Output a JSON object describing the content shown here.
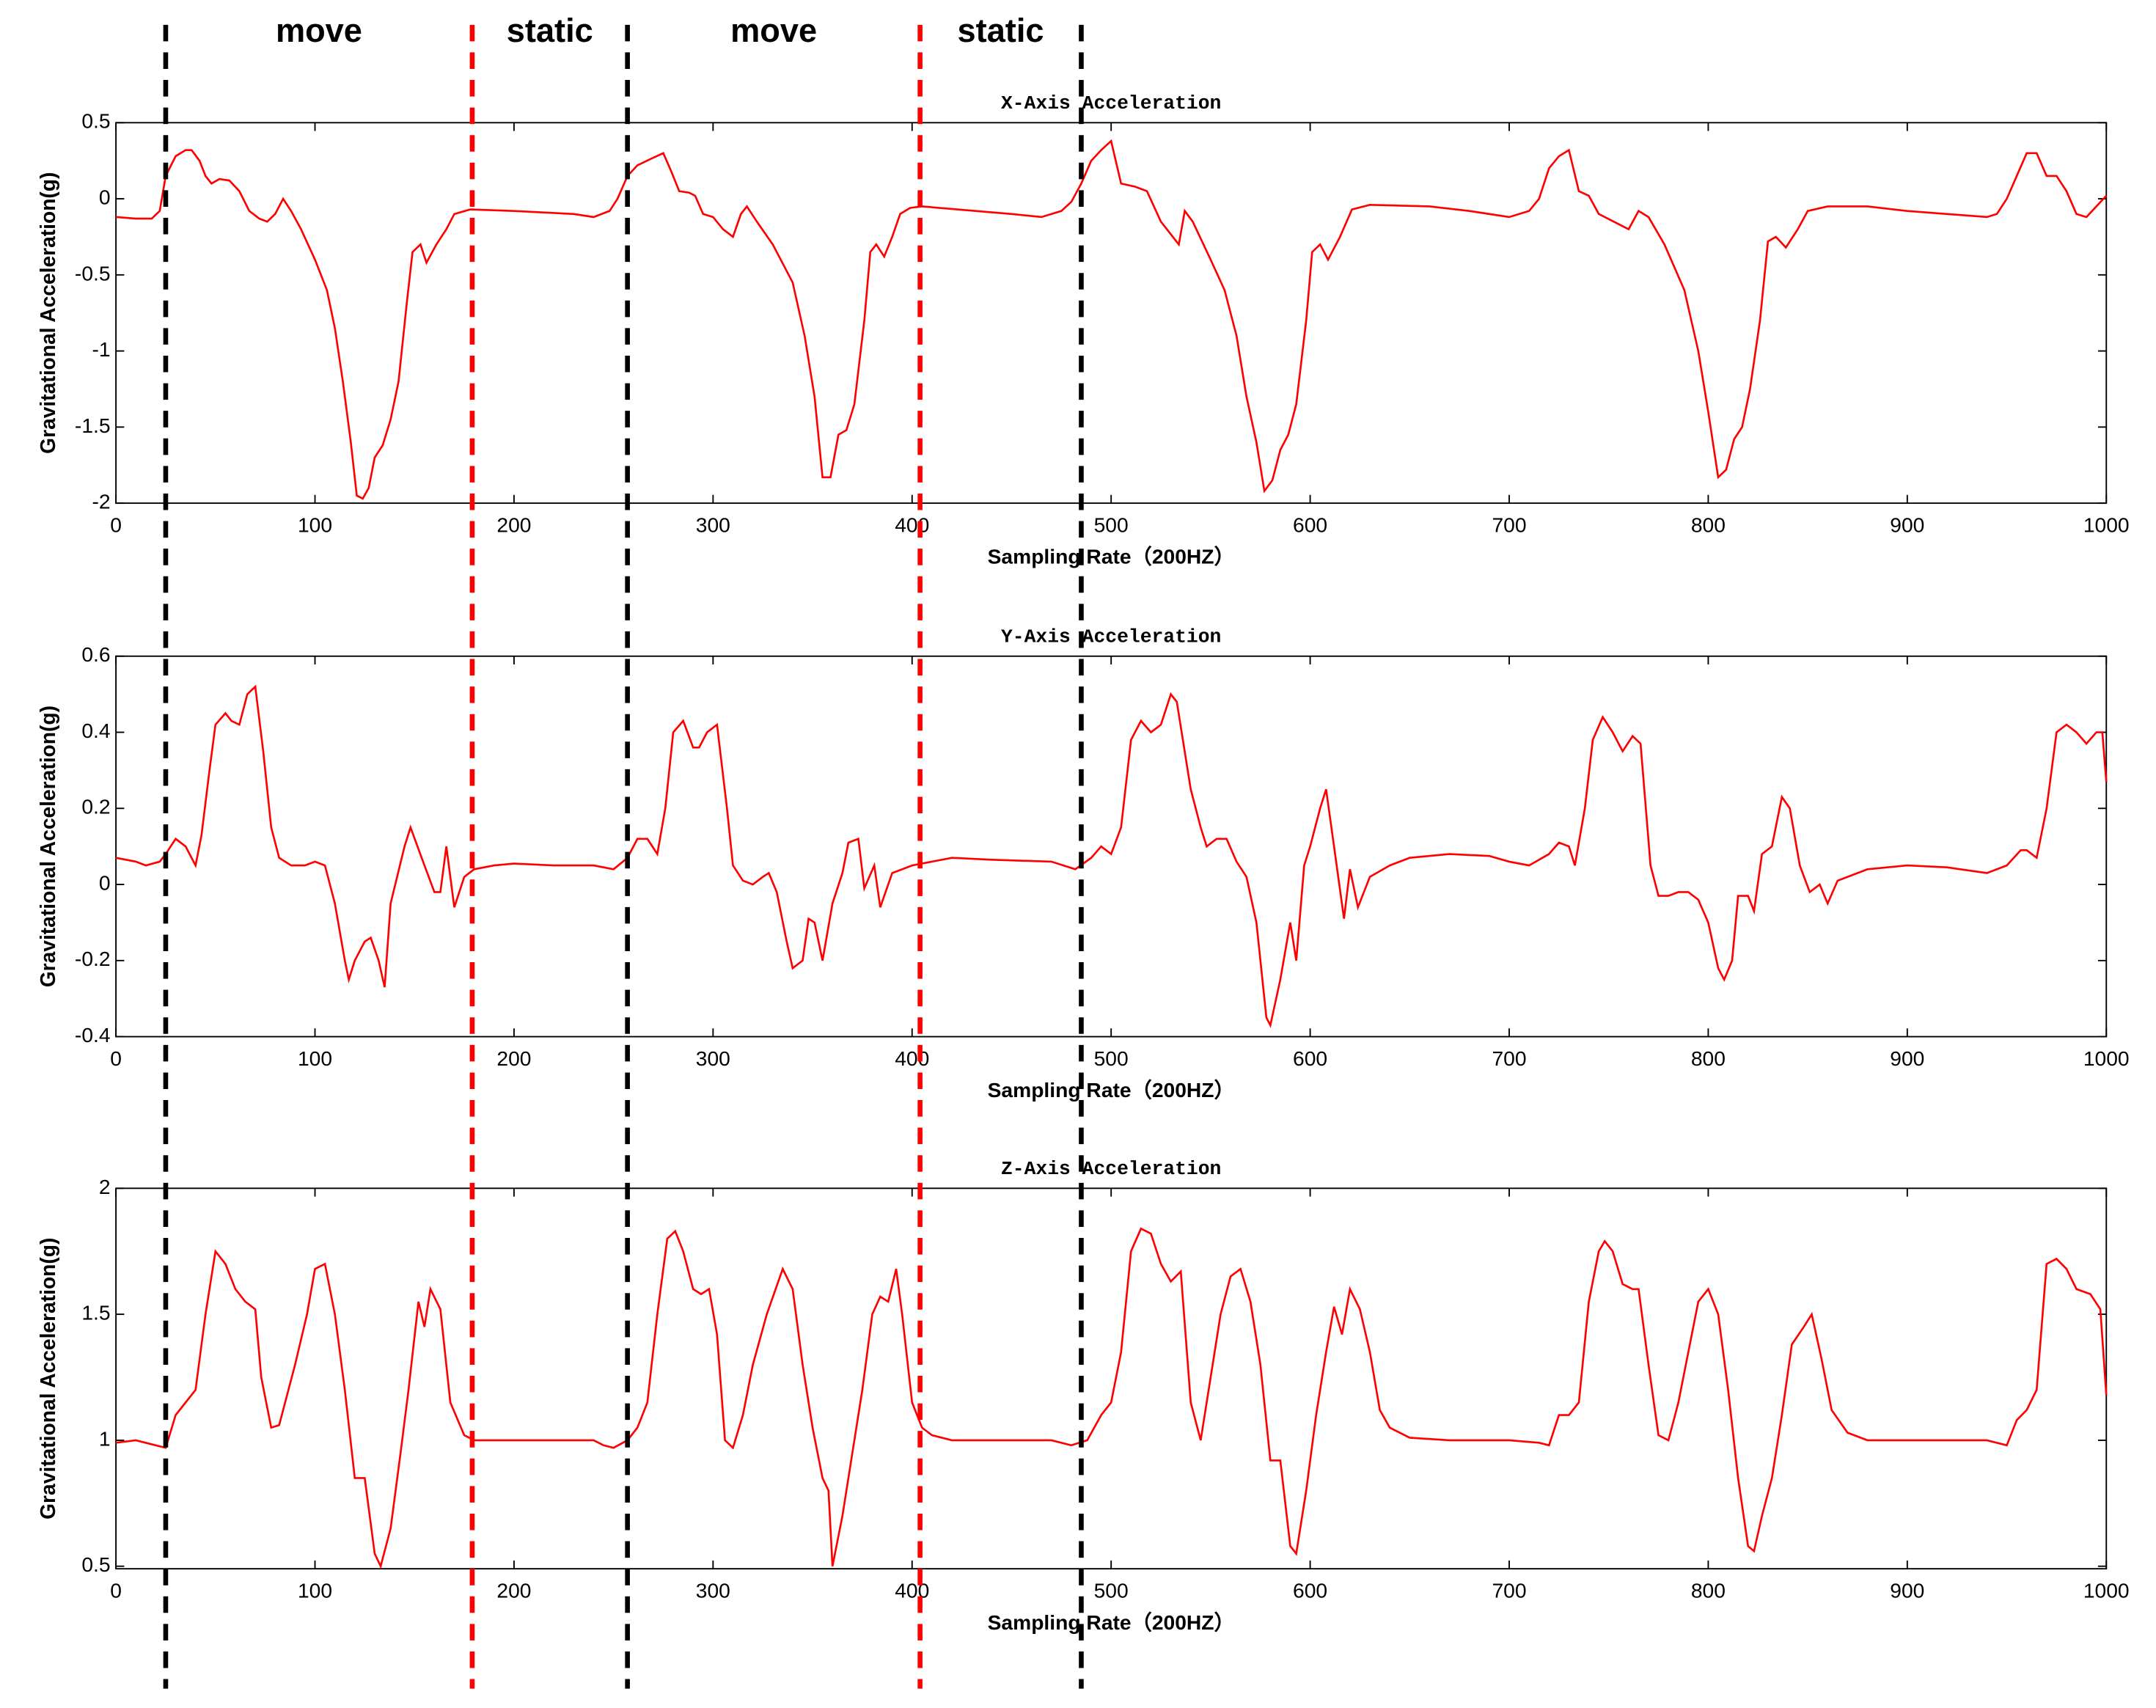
{
  "chart_data": [
    {
      "type": "line",
      "title": "X-Axis Acceleration",
      "xlabel": "Sampling Rate（200HZ）",
      "ylabel": "Gravitational Acceleration(g)",
      "xlim": [
        0,
        1000
      ],
      "xticks": [
        0,
        100,
        200,
        300,
        400,
        500,
        600,
        700,
        800,
        900,
        1000
      ],
      "ylim": [
        -2,
        0.5
      ],
      "yticks": [
        -2,
        -1.5,
        -1,
        -0.5,
        0,
        0.5
      ],
      "grid": false,
      "x": [
        0,
        10,
        18,
        22,
        25,
        30,
        35,
        38,
        42,
        45,
        48,
        52,
        57,
        62,
        67,
        72,
        76,
        80,
        84,
        88,
        93,
        100,
        106,
        110,
        114,
        118,
        121,
        124,
        127,
        130,
        134,
        138,
        142,
        146,
        149,
        153,
        156,
        161,
        166,
        170,
        178,
        200,
        230,
        240,
        248,
        252,
        257,
        262,
        270,
        275,
        279,
        283,
        288,
        291,
        295,
        300,
        305,
        310,
        314,
        317,
        322,
        330,
        340,
        346,
        351,
        355,
        359,
        363,
        367,
        371,
        376,
        379,
        382,
        386,
        390,
        394,
        399,
        405,
        450,
        465,
        475,
        480,
        485,
        490,
        495,
        500,
        505,
        512,
        518,
        525,
        534,
        537,
        541,
        550,
        557,
        563,
        568,
        573,
        577,
        581,
        585,
        589,
        593,
        598,
        601,
        605,
        609,
        615,
        621,
        630,
        660,
        680,
        700,
        710,
        715,
        720,
        725,
        730,
        735,
        740,
        745,
        760,
        765,
        770,
        778,
        788,
        795,
        800,
        805,
        809,
        813,
        817,
        821,
        826,
        830,
        834,
        839,
        845,
        850,
        860,
        880,
        900,
        940,
        945,
        950,
        955,
        960,
        965,
        970,
        975,
        980,
        985,
        990,
        995,
        1000
      ],
      "series": [
        {
          "name": "X",
          "color": "#ff0000",
          "values": [
            -0.12,
            -0.13,
            -0.13,
            -0.08,
            0.15,
            0.28,
            0.32,
            0.32,
            0.25,
            0.15,
            0.1,
            0.13,
            0.12,
            0.05,
            -0.08,
            -0.13,
            -0.15,
            -0.1,
            0.0,
            -0.08,
            -0.2,
            -0.4,
            -0.6,
            -0.85,
            -1.2,
            -1.6,
            -1.95,
            -1.97,
            -1.9,
            -1.7,
            -1.62,
            -1.45,
            -1.2,
            -0.7,
            -0.35,
            -0.3,
            -0.42,
            -0.3,
            -0.2,
            -0.1,
            -0.07,
            -0.08,
            -0.1,
            -0.12,
            -0.08,
            0.0,
            0.15,
            0.22,
            0.27,
            0.3,
            0.18,
            0.05,
            0.04,
            0.02,
            -0.1,
            -0.12,
            -0.2,
            -0.25,
            -0.1,
            -0.05,
            -0.15,
            -0.3,
            -0.55,
            -0.9,
            -1.3,
            -1.83,
            -1.83,
            -1.55,
            -1.52,
            -1.35,
            -0.8,
            -0.35,
            -0.3,
            -0.38,
            -0.25,
            -0.1,
            -0.06,
            -0.05,
            -0.1,
            -0.12,
            -0.08,
            -0.02,
            0.1,
            0.25,
            0.32,
            0.38,
            0.1,
            0.08,
            0.05,
            -0.15,
            -0.3,
            -0.08,
            -0.15,
            -0.4,
            -0.6,
            -0.9,
            -1.3,
            -1.6,
            -1.92,
            -1.85,
            -1.65,
            -1.55,
            -1.35,
            -0.8,
            -0.35,
            -0.3,
            -0.4,
            -0.25,
            -0.07,
            -0.04,
            -0.05,
            -0.08,
            -0.12,
            -0.08,
            0.0,
            0.2,
            0.28,
            0.32,
            0.05,
            0.02,
            -0.1,
            -0.2,
            -0.08,
            -0.12,
            -0.3,
            -0.6,
            -1.0,
            -1.4,
            -1.83,
            -1.78,
            -1.58,
            -1.5,
            -1.25,
            -0.8,
            -0.28,
            -0.25,
            -0.32,
            -0.2,
            -0.08,
            -0.05,
            -0.05,
            -0.08,
            -0.12,
            -0.1,
            0.0,
            0.15,
            0.3,
            0.3,
            0.15,
            0.15,
            0.05,
            -0.1,
            -0.12,
            -0.05,
            0.02
          ]
        }
      ]
    },
    {
      "type": "line",
      "title": "Y-Axis Acceleration",
      "xlabel": "Sampling Rate（200HZ）",
      "ylabel": "Gravitational Acceleration(g)",
      "xlim": [
        0,
        1000
      ],
      "xticks": [
        0,
        100,
        200,
        300,
        400,
        500,
        600,
        700,
        800,
        900,
        1000
      ],
      "ylim": [
        -0.4,
        0.6
      ],
      "yticks": [
        -0.4,
        -0.2,
        0,
        0.2,
        0.4,
        0.6
      ],
      "grid": false,
      "x": [
        0,
        10,
        15,
        22,
        25,
        30,
        35,
        40,
        43,
        47,
        50,
        55,
        58,
        62,
        66,
        70,
        74,
        78,
        82,
        88,
        95,
        100,
        105,
        110,
        115,
        117,
        120,
        125,
        128,
        132,
        135,
        138,
        145,
        148,
        155,
        160,
        163,
        166,
        170,
        175,
        180,
        190,
        200,
        220,
        240,
        250,
        257,
        262,
        267,
        272,
        276,
        280,
        285,
        290,
        293,
        297,
        302,
        307,
        310,
        315,
        320,
        325,
        328,
        332,
        337,
        340,
        345,
        348,
        351,
        355,
        360,
        365,
        368,
        373,
        376,
        381,
        384,
        390,
        400,
        420,
        440,
        470,
        482,
        490,
        495,
        500,
        505,
        510,
        515,
        520,
        525,
        530,
        533,
        540,
        545,
        548,
        553,
        558,
        563,
        568,
        573,
        578,
        580,
        585,
        590,
        593,
        597,
        600,
        605,
        608,
        612,
        617,
        620,
        624,
        630,
        640,
        650,
        670,
        690,
        700,
        710,
        720,
        725,
        730,
        733,
        738,
        742,
        747,
        752,
        757,
        762,
        766,
        771,
        775,
        780,
        785,
        790,
        795,
        800,
        805,
        808,
        812,
        815,
        820,
        823,
        827,
        832,
        837,
        841,
        846,
        851,
        856,
        860,
        865,
        880,
        900,
        920,
        940,
        950,
        957,
        960,
        965,
        970,
        975,
        980,
        985,
        990,
        995,
        998,
        1000
      ],
      "series": [
        {
          "name": "Y",
          "color": "#ff0000",
          "values": [
            0.07,
            0.06,
            0.05,
            0.06,
            0.08,
            0.12,
            0.1,
            0.05,
            0.13,
            0.3,
            0.42,
            0.45,
            0.43,
            0.42,
            0.5,
            0.52,
            0.35,
            0.15,
            0.07,
            0.05,
            0.05,
            0.06,
            0.05,
            -0.05,
            -0.2,
            -0.25,
            -0.2,
            -0.15,
            -0.14,
            -0.2,
            -0.27,
            -0.05,
            0.1,
            0.15,
            0.05,
            -0.02,
            -0.02,
            0.1,
            -0.06,
            0.02,
            0.04,
            0.05,
            0.055,
            0.05,
            0.05,
            0.04,
            0.07,
            0.12,
            0.12,
            0.08,
            0.2,
            0.4,
            0.43,
            0.36,
            0.36,
            0.4,
            0.42,
            0.2,
            0.05,
            0.01,
            0.0,
            0.02,
            0.03,
            -0.02,
            -0.15,
            -0.22,
            -0.2,
            -0.09,
            -0.1,
            -0.2,
            -0.05,
            0.03,
            0.11,
            0.12,
            -0.01,
            0.05,
            -0.06,
            0.03,
            0.05,
            0.07,
            0.065,
            0.06,
            0.04,
            0.07,
            0.1,
            0.08,
            0.15,
            0.38,
            0.43,
            0.4,
            0.42,
            0.5,
            0.48,
            0.25,
            0.15,
            0.1,
            0.12,
            0.12,
            0.06,
            0.02,
            -0.1,
            -0.35,
            -0.37,
            -0.25,
            -0.1,
            -0.2,
            0.05,
            0.1,
            0.2,
            0.25,
            0.1,
            -0.09,
            0.04,
            -0.06,
            0.02,
            0.05,
            0.07,
            0.08,
            0.075,
            0.06,
            0.05,
            0.08,
            0.11,
            0.1,
            0.05,
            0.2,
            0.38,
            0.44,
            0.4,
            0.35,
            0.39,
            0.37,
            0.05,
            -0.03,
            -0.03,
            -0.02,
            -0.02,
            -0.04,
            -0.1,
            -0.22,
            -0.25,
            -0.2,
            -0.03,
            -0.03,
            -0.07,
            0.08,
            0.1,
            0.23,
            0.2,
            0.05,
            -0.02,
            0.0,
            -0.05,
            0.01,
            0.04,
            0.05,
            0.045,
            0.03,
            0.05,
            0.09,
            0.09,
            0.07,
            0.2,
            0.4,
            0.42,
            0.4,
            0.37,
            0.4,
            0.4,
            0.27
          ]
        }
      ]
    },
    {
      "type": "line",
      "title": "Z-Axis Acceleration",
      "xlabel": "Sampling Rate（200HZ）",
      "ylabel": "Gravitational Acceleration(g)",
      "xlim": [
        0,
        1000
      ],
      "xticks": [
        0,
        100,
        200,
        300,
        400,
        500,
        600,
        700,
        800,
        900,
        1000
      ],
      "ylim": [
        0.49,
        2
      ],
      "yticks": [
        0.5,
        1,
        1.5,
        2
      ],
      "grid": false,
      "x": [
        0,
        10,
        20,
        25,
        30,
        35,
        40,
        45,
        50,
        55,
        60,
        65,
        70,
        73,
        78,
        82,
        90,
        96,
        100,
        105,
        110,
        115,
        120,
        125,
        130,
        133,
        138,
        143,
        147,
        152,
        155,
        158,
        163,
        168,
        175,
        180,
        190,
        220,
        240,
        245,
        250,
        257,
        262,
        267,
        272,
        277,
        281,
        285,
        290,
        294,
        298,
        302,
        306,
        310,
        315,
        320,
        327,
        335,
        340,
        345,
        350,
        355,
        358,
        360,
        365,
        370,
        375,
        380,
        384,
        388,
        392,
        395,
        400,
        405,
        410,
        420,
        440,
        470,
        480,
        488,
        495,
        500,
        505,
        510,
        515,
        520,
        525,
        530,
        535,
        540,
        545,
        550,
        555,
        560,
        565,
        570,
        575,
        580,
        585,
        590,
        593,
        598,
        603,
        608,
        612,
        616,
        620,
        625,
        630,
        635,
        640,
        650,
        670,
        700,
        715,
        720,
        725,
        730,
        735,
        740,
        745,
        748,
        752,
        757,
        762,
        765,
        770,
        775,
        780,
        785,
        790,
        795,
        800,
        805,
        810,
        815,
        820,
        823,
        827,
        832,
        837,
        842,
        848,
        852,
        857,
        862,
        870,
        880,
        900,
        940,
        950,
        955,
        960,
        965,
        970,
        975,
        980,
        985,
        992,
        997,
        1000
      ],
      "series": [
        {
          "name": "Z",
          "color": "#ff0000",
          "values": [
            0.99,
            1.0,
            0.98,
            0.97,
            1.1,
            1.15,
            1.2,
            1.5,
            1.75,
            1.7,
            1.6,
            1.55,
            1.52,
            1.25,
            1.05,
            1.06,
            1.3,
            1.5,
            1.68,
            1.7,
            1.5,
            1.2,
            0.85,
            0.85,
            0.55,
            0.5,
            0.65,
            0.95,
            1.2,
            1.55,
            1.45,
            1.6,
            1.52,
            1.15,
            1.02,
            1.0,
            1.0,
            1.0,
            1.0,
            0.98,
            0.97,
            1.0,
            1.05,
            1.15,
            1.5,
            1.8,
            1.83,
            1.75,
            1.6,
            1.58,
            1.6,
            1.42,
            1.0,
            0.97,
            1.1,
            1.3,
            1.5,
            1.68,
            1.6,
            1.3,
            1.05,
            0.85,
            0.8,
            0.5,
            0.7,
            0.95,
            1.2,
            1.5,
            1.57,
            1.55,
            1.68,
            1.5,
            1.15,
            1.05,
            1.02,
            1.0,
            1.0,
            1.0,
            0.98,
            1.0,
            1.1,
            1.15,
            1.35,
            1.75,
            1.84,
            1.82,
            1.7,
            1.63,
            1.67,
            1.15,
            1.0,
            1.25,
            1.5,
            1.65,
            1.68,
            1.55,
            1.3,
            0.92,
            0.92,
            0.58,
            0.55,
            0.8,
            1.1,
            1.35,
            1.53,
            1.42,
            1.6,
            1.52,
            1.35,
            1.12,
            1.05,
            1.01,
            1.0,
            1.0,
            0.99,
            0.98,
            1.1,
            1.1,
            1.15,
            1.55,
            1.75,
            1.79,
            1.75,
            1.62,
            1.6,
            1.6,
            1.3,
            1.02,
            1.0,
            1.15,
            1.35,
            1.55,
            1.6,
            1.5,
            1.2,
            0.85,
            0.58,
            0.56,
            0.7,
            0.85,
            1.1,
            1.38,
            1.45,
            1.5,
            1.32,
            1.12,
            1.03,
            1.0,
            1.0,
            1.0,
            0.98,
            1.08,
            1.12,
            1.2,
            1.7,
            1.72,
            1.68,
            1.6,
            1.58,
            1.52,
            1.18
          ]
        }
      ]
    }
  ],
  "annotations": {
    "boundaries": [
      {
        "x": 25,
        "color": "#000000"
      },
      {
        "x": 179,
        "color": "#ff0000"
      },
      {
        "x": 257,
        "color": "#000000"
      },
      {
        "x": 404,
        "color": "#ff0000"
      },
      {
        "x": 485,
        "color": "#000000"
      }
    ],
    "regions": [
      "move",
      "static",
      "move",
      "static"
    ]
  }
}
